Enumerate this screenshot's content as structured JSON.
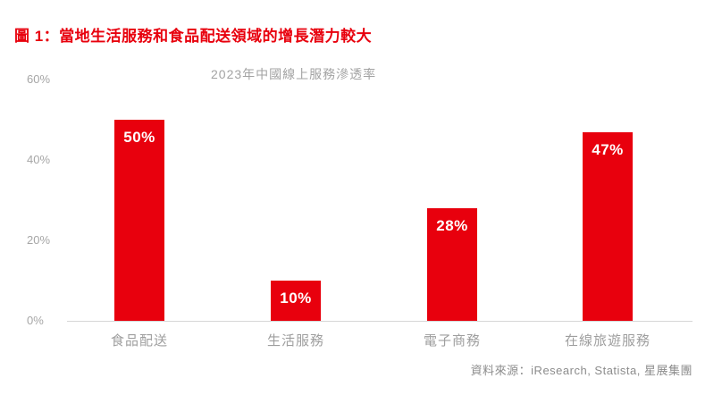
{
  "figure": {
    "title": "圖 1：當地生活服務和食品配送領域的增長潛力較大",
    "source": "資料來源：iResearch, Statista, 星展集團"
  },
  "chart_data": {
    "type": "bar",
    "title": "2023年中國線上服務滲透率",
    "categories": [
      "食品配送",
      "生活服務",
      "電子商務",
      "在線旅遊服務"
    ],
    "values": [
      50,
      10,
      28,
      47
    ],
    "value_labels": [
      "50%",
      "10%",
      "28%",
      "47%"
    ],
    "yticks": [
      {
        "label": "60%",
        "value": 60
      },
      {
        "label": "40%",
        "value": 40
      },
      {
        "label": "20%",
        "value": 20
      },
      {
        "label": "0%",
        "value": 0
      }
    ],
    "ylim": [
      0,
      60
    ],
    "grid": false,
    "legend": false,
    "bar_label_position": "inside-top"
  },
  "colors": {
    "accent_red": "#e8000d",
    "bar_value_text": "#ffffff",
    "subtitle_gray": "#a3a3a3",
    "tick_gray": "#a6a6a6",
    "category_gray": "#9e9e9e",
    "source_gray": "#8c8c8c",
    "axis_line_gray": "#d6d6d6"
  }
}
